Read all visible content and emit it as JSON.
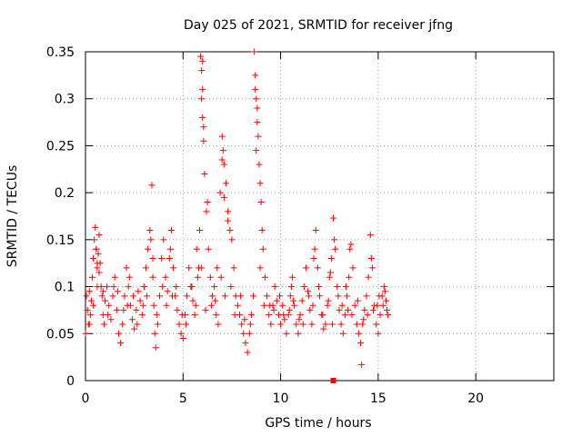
{
  "chart_data": {
    "type": "scatter",
    "title": "Day 025 of 2021, SRMTID for receiver jfng",
    "xlabel": "GPS time / hours",
    "ylabel": "SRMTID / TECUs",
    "xlim": [
      0,
      24
    ],
    "ylim": [
      0,
      0.35
    ],
    "xticks": [
      0,
      5,
      10,
      15,
      20
    ],
    "xtick_labels": [
      "0",
      "5",
      "10",
      "15",
      "20"
    ],
    "yticks": [
      0,
      0.05,
      0.1,
      0.15,
      0.2,
      0.25,
      0.3,
      0.35
    ],
    "ytick_labels": [
      "0",
      "0.05",
      "0.1",
      "0.15",
      "0.2",
      "0.25",
      "0.3",
      "0.35"
    ],
    "grid": true,
    "marker": "plus",
    "marker_color": "#ff0000",
    "series": [
      {
        "name": "SRMTID",
        "points": [
          [
            0.0,
            0.05
          ],
          [
            0.05,
            0.09
          ],
          [
            0.1,
            0.075
          ],
          [
            0.15,
            0.06
          ],
          [
            0.2,
            0.095
          ],
          [
            0.25,
            0.07
          ],
          [
            0.3,
            0.085
          ],
          [
            0.35,
            0.11
          ],
          [
            0.4,
            0.13
          ],
          [
            0.45,
            0.15
          ],
          [
            0.5,
            0.163
          ],
          [
            0.55,
            0.14
          ],
          [
            0.6,
            0.12
          ],
          [
            0.65,
            0.135
          ],
          [
            0.7,
            0.155
          ],
          [
            0.75,
            0.125
          ],
          [
            0.8,
            0.1
          ],
          [
            0.85,
            0.09
          ],
          [
            0.9,
            0.07
          ],
          [
            0.95,
            0.06
          ],
          [
            1.0,
            0.085
          ],
          [
            1.1,
            0.1
          ],
          [
            1.2,
            0.08
          ],
          [
            1.3,
            0.065
          ],
          [
            1.4,
            0.09
          ],
          [
            1.5,
            0.11
          ],
          [
            1.6,
            0.075
          ],
          [
            1.7,
            0.05
          ],
          [
            1.8,
            0.04
          ],
          [
            1.9,
            0.06
          ],
          [
            2.0,
            0.09
          ],
          [
            2.1,
            0.12
          ],
          [
            2.2,
            0.1
          ],
          [
            2.3,
            0.08
          ],
          [
            2.4,
            0.065
          ],
          [
            2.5,
            0.055
          ],
          [
            2.6,
            0.075
          ],
          [
            2.7,
            0.095
          ],
          [
            2.8,
            0.085
          ],
          [
            2.9,
            0.07
          ],
          [
            3.0,
            0.1
          ],
          [
            3.1,
            0.12
          ],
          [
            3.2,
            0.14
          ],
          [
            3.3,
            0.16
          ],
          [
            3.4,
            0.208
          ],
          [
            3.45,
            0.11
          ],
          [
            3.5,
            0.08
          ],
          [
            3.55,
            0.05
          ],
          [
            3.6,
            0.035
          ],
          [
            3.7,
            0.06
          ],
          [
            3.8,
            0.09
          ],
          [
            3.9,
            0.13
          ],
          [
            4.0,
            0.15
          ],
          [
            4.1,
            0.11
          ],
          [
            4.2,
            0.095
          ],
          [
            4.3,
            0.13
          ],
          [
            4.4,
            0.16
          ],
          [
            4.5,
            0.12
          ],
          [
            4.6,
            0.09
          ],
          [
            4.7,
            0.075
          ],
          [
            4.8,
            0.06
          ],
          [
            4.9,
            0.05
          ],
          [
            5.0,
            0.045
          ],
          [
            5.1,
            0.07
          ],
          [
            5.2,
            0.09
          ],
          [
            5.3,
            0.12
          ],
          [
            5.4,
            0.1
          ],
          [
            5.5,
            0.085
          ],
          [
            5.6,
            0.07
          ],
          [
            5.7,
            0.14
          ],
          [
            5.8,
            0.12
          ],
          [
            5.9,
            0.345
          ],
          [
            5.95,
            0.33
          ],
          [
            6.0,
            0.28
          ],
          [
            6.05,
            0.255
          ],
          [
            6.1,
            0.22
          ],
          [
            6.2,
            0.18
          ],
          [
            6.3,
            0.14
          ],
          [
            6.4,
            0.11
          ],
          [
            6.5,
            0.09
          ],
          [
            6.6,
            0.1
          ],
          [
            6.7,
            0.07
          ],
          [
            6.8,
            0.06
          ],
          [
            6.9,
            0.2
          ],
          [
            7.0,
            0.26
          ],
          [
            7.05,
            0.245
          ],
          [
            7.1,
            0.23
          ],
          [
            7.2,
            0.21
          ],
          [
            7.3,
            0.18
          ],
          [
            7.4,
            0.16
          ],
          [
            7.5,
            0.15
          ],
          [
            7.6,
            0.12
          ],
          [
            7.7,
            0.09
          ],
          [
            7.8,
            0.08
          ],
          [
            7.9,
            0.07
          ],
          [
            8.0,
            0.06
          ],
          [
            8.1,
            0.05
          ],
          [
            8.2,
            0.04
          ],
          [
            8.3,
            0.03
          ],
          [
            8.4,
            0.05
          ],
          [
            8.5,
            0.07
          ],
          [
            8.6,
            0.09
          ],
          [
            8.65,
            0.35
          ],
          [
            8.7,
            0.325
          ],
          [
            8.75,
            0.3
          ],
          [
            8.8,
            0.275
          ],
          [
            8.85,
            0.26
          ],
          [
            8.9,
            0.23
          ],
          [
            8.95,
            0.21
          ],
          [
            9.0,
            0.19
          ],
          [
            9.1,
            0.14
          ],
          [
            9.2,
            0.11
          ],
          [
            9.3,
            0.09
          ],
          [
            9.4,
            0.07
          ],
          [
            9.5,
            0.06
          ],
          [
            9.6,
            0.08
          ],
          [
            9.7,
            0.1
          ],
          [
            9.8,
            0.085
          ],
          [
            9.9,
            0.07
          ],
          [
            10.0,
            0.06
          ],
          [
            10.1,
            0.08
          ],
          [
            10.2,
            0.065
          ],
          [
            10.3,
            0.05
          ],
          [
            10.4,
            0.07
          ],
          [
            10.5,
            0.09
          ],
          [
            10.6,
            0.11
          ],
          [
            10.7,
            0.08
          ],
          [
            10.8,
            0.06
          ],
          [
            10.9,
            0.05
          ],
          [
            11.0,
            0.07
          ],
          [
            11.1,
            0.085
          ],
          [
            11.2,
            0.1
          ],
          [
            11.3,
            0.12
          ],
          [
            11.4,
            0.095
          ],
          [
            11.5,
            0.075
          ],
          [
            11.6,
            0.06
          ],
          [
            11.7,
            0.13
          ],
          [
            11.8,
            0.16
          ],
          [
            11.9,
            0.12
          ],
          [
            12.0,
            0.09
          ],
          [
            12.1,
            0.07
          ],
          [
            12.2,
            0.055
          ],
          [
            12.3,
            0.06
          ],
          [
            12.4,
            0.08
          ],
          [
            12.5,
            0.11
          ],
          [
            12.6,
            0.13
          ],
          [
            12.7,
            0.173
          ],
          [
            12.8,
            0.14
          ],
          [
            12.9,
            0.1
          ],
          [
            13.0,
            0.075
          ],
          [
            13.1,
            0.06
          ],
          [
            13.2,
            0.05
          ],
          [
            13.3,
            0.07
          ],
          [
            13.4,
            0.09
          ],
          [
            13.5,
            0.11
          ],
          [
            13.6,
            0.145
          ],
          [
            13.7,
            0.12
          ],
          [
            13.8,
            0.08
          ],
          [
            13.9,
            0.06
          ],
          [
            14.0,
            0.05
          ],
          [
            14.1,
            0.04
          ],
          [
            14.15,
            0.017
          ],
          [
            14.2,
            0.06
          ],
          [
            14.3,
            0.075
          ],
          [
            14.4,
            0.09
          ],
          [
            14.5,
            0.11
          ],
          [
            14.6,
            0.155
          ],
          [
            14.7,
            0.12
          ],
          [
            14.8,
            0.08
          ],
          [
            14.9,
            0.06
          ],
          [
            15.0,
            0.05
          ],
          [
            15.1,
            0.07
          ],
          [
            15.2,
            0.09
          ],
          [
            15.3,
            0.1
          ],
          [
            15.4,
            0.085
          ],
          [
            15.5,
            0.07
          ],
          [
            0.2,
            0.06
          ],
          [
            0.6,
            0.1
          ],
          [
            1.15,
            0.07
          ],
          [
            1.65,
            0.095
          ],
          [
            2.15,
            0.08
          ],
          [
            2.65,
            0.06
          ],
          [
            3.15,
            0.09
          ],
          [
            3.65,
            0.07
          ],
          [
            4.15,
            0.08
          ],
          [
            4.65,
            0.1
          ],
          [
            5.15,
            0.06
          ],
          [
            5.65,
            0.08
          ],
          [
            6.15,
            0.075
          ],
          [
            6.65,
            0.085
          ],
          [
            7.15,
            0.09
          ],
          [
            7.65,
            0.07
          ],
          [
            8.15,
            0.065
          ],
          [
            9.15,
            0.08
          ],
          [
            9.65,
            0.075
          ],
          [
            10.15,
            0.07
          ],
          [
            10.65,
            0.085
          ],
          [
            11.15,
            0.06
          ],
          [
            11.65,
            0.08
          ],
          [
            12.15,
            0.07
          ],
          [
            12.65,
            0.06
          ],
          [
            13.15,
            0.08
          ],
          [
            13.65,
            0.07
          ],
          [
            14.25,
            0.065
          ],
          [
            14.75,
            0.075
          ],
          [
            15.25,
            0.08
          ],
          [
            0.4,
            0.08
          ],
          [
            0.9,
            0.095
          ],
          [
            1.45,
            0.1
          ],
          [
            1.95,
            0.075
          ],
          [
            2.45,
            0.09
          ],
          [
            2.95,
            0.08
          ],
          [
            3.45,
            0.13
          ],
          [
            3.95,
            0.1
          ],
          [
            4.45,
            0.09
          ],
          [
            4.95,
            0.07
          ],
          [
            5.45,
            0.1
          ],
          [
            5.95,
            0.12
          ],
          [
            6.45,
            0.08
          ],
          [
            6.95,
            0.11
          ],
          [
            7.45,
            0.1
          ],
          [
            7.95,
            0.09
          ],
          [
            8.45,
            0.06
          ],
          [
            8.95,
            0.12
          ],
          [
            9.45,
            0.08
          ],
          [
            9.95,
            0.09
          ],
          [
            10.45,
            0.075
          ],
          [
            10.95,
            0.065
          ],
          [
            11.45,
            0.09
          ],
          [
            11.95,
            0.1
          ],
          [
            12.45,
            0.085
          ],
          [
            12.95,
            0.09
          ],
          [
            13.45,
            0.075
          ],
          [
            13.95,
            0.085
          ],
          [
            14.45,
            0.07
          ],
          [
            14.95,
            0.08
          ],
          [
            15.45,
            0.075
          ],
          [
            6.0,
            0.34
          ],
          [
            6.0,
            0.31
          ],
          [
            5.95,
            0.3
          ],
          [
            6.05,
            0.27
          ],
          [
            8.7,
            0.31
          ],
          [
            8.8,
            0.29
          ],
          [
            8.75,
            0.245
          ],
          [
            7.0,
            0.235
          ],
          [
            7.1,
            0.195
          ],
          [
            7.3,
            0.17
          ],
          [
            6.25,
            0.19
          ],
          [
            5.85,
            0.16
          ],
          [
            9.05,
            0.16
          ],
          [
            12.75,
            0.15
          ],
          [
            13.55,
            0.14
          ],
          [
            14.65,
            0.13
          ],
          [
            11.75,
            0.14
          ],
          [
            3.35,
            0.15
          ],
          [
            4.35,
            0.14
          ],
          [
            0.55,
            0.14
          ],
          [
            0.6,
            0.125
          ],
          [
            0.7,
            0.115
          ],
          [
            2.25,
            0.11
          ],
          [
            5.75,
            0.11
          ],
          [
            6.75,
            0.12
          ],
          [
            10.55,
            0.1
          ],
          [
            12.55,
            0.115
          ],
          [
            13.35,
            0.1
          ],
          [
            15.05,
            0.09
          ],
          [
            15.35,
            0.095
          ]
        ]
      }
    ],
    "special_marker": {
      "x": 12.7,
      "y": 0,
      "shape": "square"
    }
  }
}
